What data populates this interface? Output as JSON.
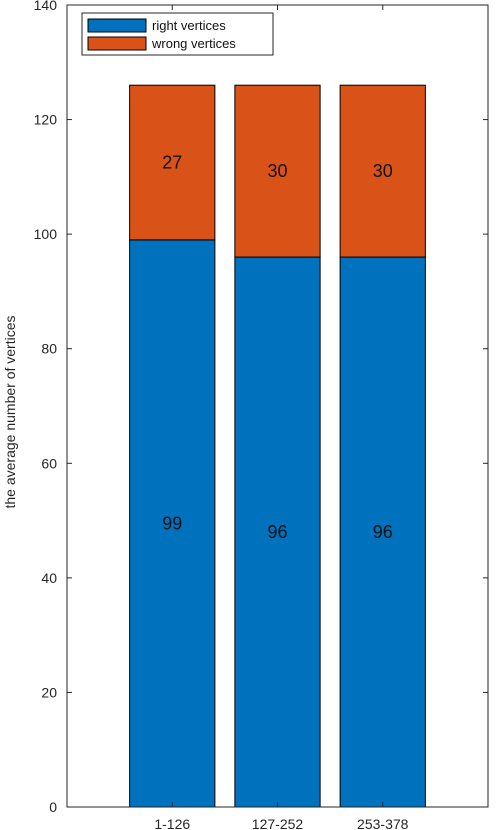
{
  "chart_data": {
    "type": "bar",
    "stacked": true,
    "categories": [
      "1-126",
      "127-252",
      "253-378"
    ],
    "series": [
      {
        "name": "right vertices",
        "values": [
          99,
          96,
          96
        ],
        "color": "#0072BD"
      },
      {
        "name": "wrong vertices",
        "values": [
          27,
          30,
          30
        ],
        "color": "#D95319"
      }
    ],
    "data_labels": [
      [
        "99",
        "96",
        "96"
      ],
      [
        "27",
        "30",
        "30"
      ]
    ],
    "title": "",
    "xlabel": "",
    "ylabel": "the average number of vertices",
    "ylim": [
      0,
      140
    ],
    "yticks": [
      0,
      20,
      40,
      60,
      80,
      100,
      120,
      140
    ],
    "grid": false,
    "legend_position": "top-left"
  }
}
